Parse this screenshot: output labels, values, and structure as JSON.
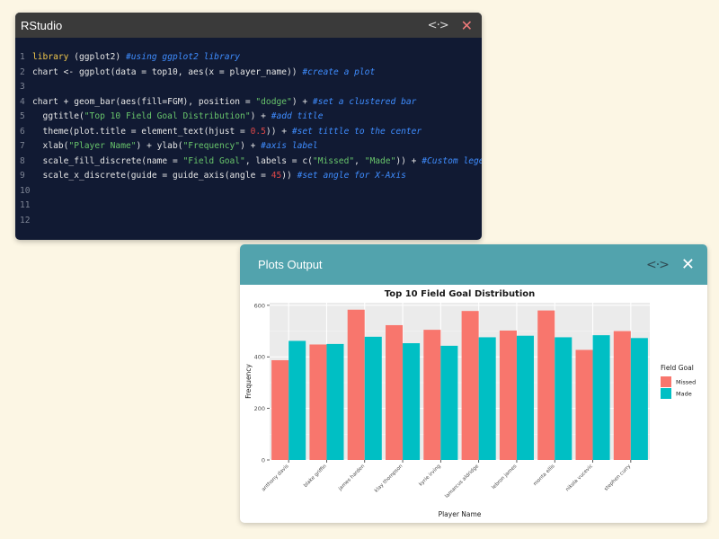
{
  "rstudio": {
    "title": "RStudio",
    "lines": [
      {
        "n": "1",
        "parts": [
          {
            "t": "library",
            "c": "kw"
          },
          {
            "t": " (ggplot2) "
          },
          {
            "t": "#using ggplot2 library",
            "c": "cmt"
          }
        ]
      },
      {
        "n": "2",
        "parts": [
          {
            "t": "chart <- ggplot(data = top10, aes(x = player_name)) "
          },
          {
            "t": "#create a plot",
            "c": "cmt"
          }
        ]
      },
      {
        "n": "3",
        "parts": []
      },
      {
        "n": "4",
        "parts": [
          {
            "t": "chart + geom_bar(aes(fill=FGM), position = "
          },
          {
            "t": "\"dodge\"",
            "c": "str"
          },
          {
            "t": ") + "
          },
          {
            "t": "#set a clustered bar",
            "c": "cmt"
          }
        ]
      },
      {
        "n": "5",
        "parts": [
          {
            "t": "  ggtitle("
          },
          {
            "t": "\"Top 10 Field Goal Distribution\"",
            "c": "str"
          },
          {
            "t": ") + "
          },
          {
            "t": "#add title",
            "c": "cmt"
          }
        ]
      },
      {
        "n": "6",
        "parts": [
          {
            "t": "  theme(plot.title = element_text(hjust = "
          },
          {
            "t": "0.5",
            "c": "num"
          },
          {
            "t": ")) + "
          },
          {
            "t": "#set tittle to the center",
            "c": "cmt"
          }
        ]
      },
      {
        "n": "7",
        "parts": [
          {
            "t": "  xlab("
          },
          {
            "t": "\"Player Name\"",
            "c": "str"
          },
          {
            "t": ") + ylab("
          },
          {
            "t": "\"Frequency\"",
            "c": "str"
          },
          {
            "t": ") + "
          },
          {
            "t": "#axis label",
            "c": "cmt"
          }
        ]
      },
      {
        "n": "8",
        "parts": [
          {
            "t": "  scale_fill_discrete(name = "
          },
          {
            "t": "\"Field Goal\"",
            "c": "str"
          },
          {
            "t": ", labels = c("
          },
          {
            "t": "\"Missed\"",
            "c": "str"
          },
          {
            "t": ", "
          },
          {
            "t": "\"Made\"",
            "c": "str"
          },
          {
            "t": ")) + "
          },
          {
            "t": "#Custom legend",
            "c": "cmt"
          }
        ]
      },
      {
        "n": "9",
        "parts": [
          {
            "t": "  scale_x_discrete(guide = guide_axis(angle = "
          },
          {
            "t": "45",
            "c": "num"
          },
          {
            "t": ")) "
          },
          {
            "t": "#set angle for X-Axis",
            "c": "cmt"
          }
        ]
      },
      {
        "n": "10",
        "parts": []
      },
      {
        "n": "11",
        "parts": []
      },
      {
        "n": "12",
        "parts": []
      }
    ]
  },
  "plots_panel": {
    "title": "Plots Output"
  },
  "icons": {
    "expand": "expand-arrows-icon",
    "close": "close-icon"
  },
  "colors": {
    "missed": "#f8766d",
    "made": "#00bfc4",
    "panel_bg": "#ebebeb",
    "rstudio_bg": "#111a33",
    "plots_header": "#52a3ad"
  },
  "chart_data": {
    "type": "bar",
    "title": "Top 10 Field Goal Distribution",
    "xlabel": "Player Name",
    "ylabel": "Frequency",
    "ylim": [
      0,
      610
    ],
    "yticks": [
      0,
      200,
      400,
      600
    ],
    "grid": true,
    "legend_title": "Field Goal",
    "legend_position": "right",
    "categories": [
      "anthony davis",
      "blake griffin",
      "james harden",
      "klay thompson",
      "kyrie irving",
      "lamarcus aldridge",
      "lebron james",
      "monta ellis",
      "nikola vucevic",
      "stephen curry"
    ],
    "series": [
      {
        "name": "Missed",
        "values": [
          387,
          448,
          583,
          523,
          505,
          578,
          502,
          580,
          427,
          500
        ]
      },
      {
        "name": "Made",
        "values": [
          462,
          450,
          478,
          453,
          443,
          476,
          482,
          476,
          484,
          473
        ]
      }
    ]
  }
}
